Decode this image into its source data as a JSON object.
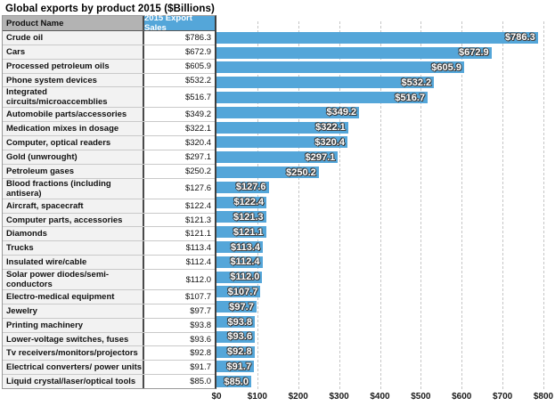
{
  "title": "Global exports by product 2015 ($Billions)",
  "table": {
    "headers": [
      "Product Name",
      "2015 Export Sales"
    ]
  },
  "chart_data": {
    "type": "bar",
    "orientation": "horizontal",
    "title": "Global exports by product 2015 ($Billions)",
    "categories": [
      "Crude oil",
      "Cars",
      "Processed petroleum oils",
      "Phone system devices",
      "Integrated circuits/microaccemblies",
      "Automobile parts/accessories",
      "Medication mixes in dosage",
      "Computer, optical readers",
      "Gold (unwrought)",
      "Petroleum gases",
      "Blood fractions (including antisera)",
      "Aircraft, spacecraft",
      "Computer parts, accessories",
      "Diamonds",
      "Trucks",
      "Insulated wire/cable",
      "Solar power diodes/semi-conductors",
      "Electro-medical equipment",
      "Jewelry",
      "Printing machinery",
      "Lower-voltage switches, fuses",
      "Tv receivers/monitors/projectors",
      "Electrical converters/ power units",
      "Liquid crystal/laser/optical tools"
    ],
    "values": [
      786.3,
      672.9,
      605.9,
      532.2,
      516.7,
      349.2,
      322.1,
      320.4,
      297.1,
      250.2,
      127.6,
      122.4,
      121.3,
      121.1,
      113.4,
      112.4,
      112.0,
      107.7,
      97.7,
      93.8,
      93.6,
      92.8,
      91.7,
      85.0
    ],
    "value_labels": [
      "$786.3",
      "$672.9",
      "$605.9",
      "$532.2",
      "$516.7",
      "$349.2",
      "$322.1",
      "$320.4",
      "$297.1",
      "$250.2",
      "$127.6",
      "$122.4",
      "$121.3",
      "$121.1",
      "$113.4",
      "$112.4",
      "$112.0",
      "$107.7",
      "$97.7",
      "$93.8",
      "$93.6",
      "$92.8",
      "$91.7",
      "$85.0"
    ],
    "x_ticks": [
      "$0",
      "$100",
      "$200",
      "$300",
      "$400",
      "$500",
      "$600",
      "$700",
      "$800"
    ],
    "xlim": [
      0,
      800
    ],
    "grid": "vertical-dashed",
    "legend": "none",
    "bar_color": "#54a6d9"
  },
  "colors": {
    "bar": "#54a6d9",
    "sales_header_bg": "#54a6d9",
    "product_header_bg": "#b3b3b3",
    "product_cell_bg": "#f2f2f2",
    "row_border": "#c9c9c9",
    "column_divider": "#4a4a4a",
    "gridline": "#c6c6c6"
  }
}
